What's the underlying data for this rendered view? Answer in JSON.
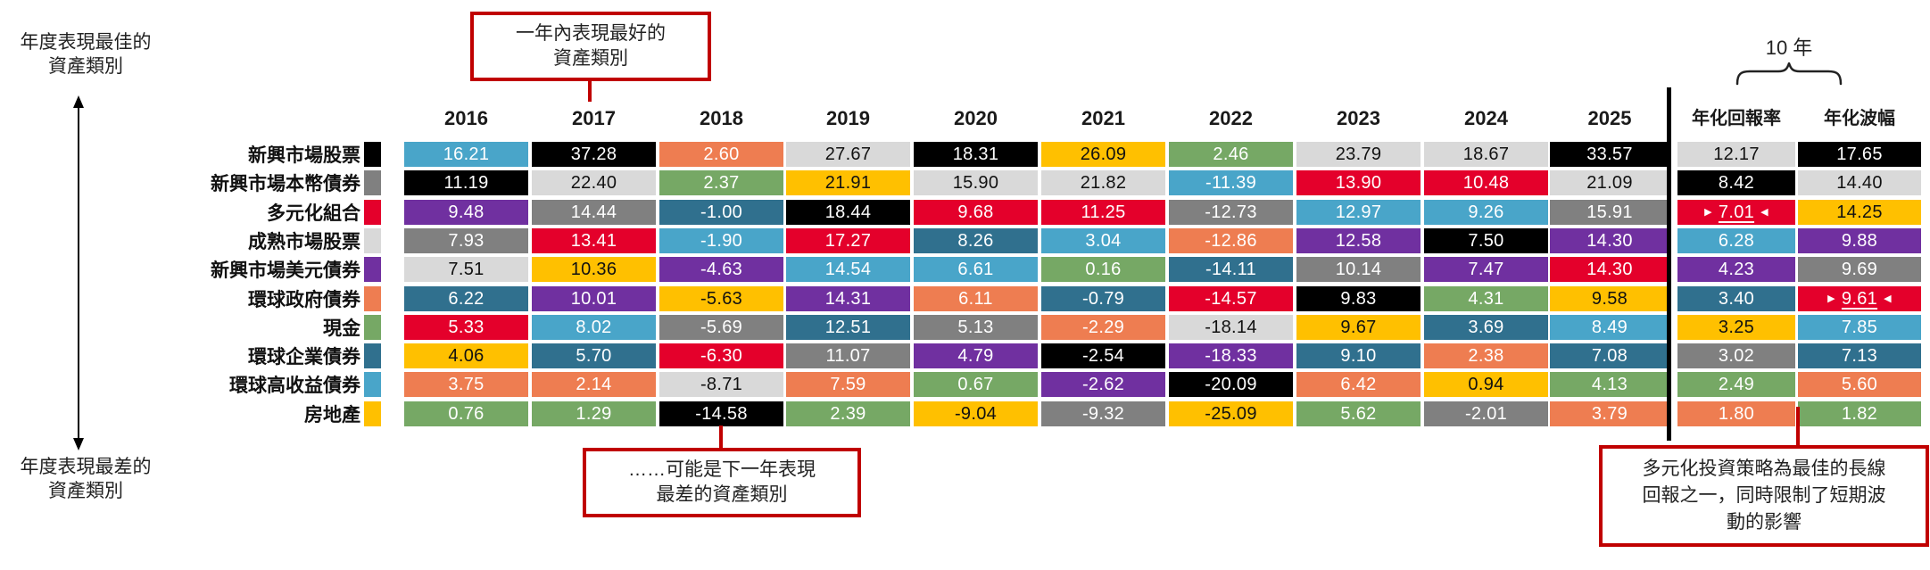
{
  "annotations": {
    "axis_best": [
      "年度表現最佳的",
      "資產類別"
    ],
    "axis_worst": [
      "年度表現最差的",
      "資產類別"
    ],
    "callout_best": [
      "一年內表現最好的",
      "資產類別"
    ],
    "callout_worst": [
      "……可能是下一年表現",
      "最差的資產類別"
    ],
    "callout_div": [
      "多元化投資策略為最佳的長線",
      "回報之一，同時限制了短期波",
      "動的影響"
    ],
    "ten_year": "10 年",
    "accent_color": "#c00000",
    "separator_color": "#000000"
  },
  "chart_data": {
    "type": "table",
    "description": "資產類別年度表現排名（每欄由最佳至最差排序），顏色代表資產類別",
    "columns": [
      "2016",
      "2017",
      "2018",
      "2019",
      "2020",
      "2021",
      "2022",
      "2023",
      "2024",
      "2025",
      "年化回報率",
      "年化波幅"
    ],
    "assets": {
      "em_equity": {
        "label": "新興市場股票",
        "color": "#000000",
        "text_color": "#ffffff"
      },
      "em_local_debt": {
        "label": "新興市場本幣債券",
        "color": "#808080",
        "text_color": "#ffffff"
      },
      "diversified": {
        "label": "多元化組合",
        "color": "#e4002b",
        "text_color": "#ffffff"
      },
      "dm_equity": {
        "label": "成熟市場股票",
        "color": "#d9d9d9",
        "text_color": "#111111"
      },
      "em_usd_debt": {
        "label": "新興市場美元債券",
        "color": "#7030a0",
        "text_color": "#ffffff"
      },
      "global_govt_bonds": {
        "label": "環球政府債券",
        "color": "#ee7d51",
        "text_color": "#ffffff"
      },
      "cash": {
        "label": "現金",
        "color": "#76a865",
        "text_color": "#ffffff"
      },
      "global_corp_bonds": {
        "label": "環球企業債券",
        "color": "#30708e",
        "text_color": "#ffffff"
      },
      "global_high_yield": {
        "label": "環球高收益債券",
        "color": "#49a5c9",
        "text_color": "#ffffff"
      },
      "real_estate": {
        "label": "房地產",
        "color": "#ffc000",
        "text_color": "#111111"
      }
    },
    "legend_order": [
      "em_equity",
      "em_local_debt",
      "diversified",
      "dm_equity",
      "em_usd_debt",
      "global_govt_bonds",
      "cash",
      "global_corp_bonds",
      "global_high_yield",
      "real_estate"
    ],
    "ranking_columns": [
      {
        "label": "2016",
        "cells": [
          {
            "a": "global_high_yield",
            "v": "16.21"
          },
          {
            "a": "em_equity",
            "v": "11.19"
          },
          {
            "a": "em_usd_debt",
            "v": "9.48"
          },
          {
            "a": "em_local_debt",
            "v": "7.93"
          },
          {
            "a": "dm_equity",
            "v": "7.51"
          },
          {
            "a": "global_corp_bonds",
            "v": "6.22"
          },
          {
            "a": "diversified",
            "v": "5.33"
          },
          {
            "a": "real_estate",
            "v": "4.06"
          },
          {
            "a": "global_govt_bonds",
            "v": "3.75"
          },
          {
            "a": "cash",
            "v": "0.76"
          }
        ]
      },
      {
        "label": "2017",
        "cells": [
          {
            "a": "em_equity",
            "v": "37.28"
          },
          {
            "a": "dm_equity",
            "v": "22.40"
          },
          {
            "a": "em_local_debt",
            "v": "14.44"
          },
          {
            "a": "diversified",
            "v": "13.41"
          },
          {
            "a": "real_estate",
            "v": "10.36"
          },
          {
            "a": "em_usd_debt",
            "v": "10.01"
          },
          {
            "a": "global_high_yield",
            "v": "8.02"
          },
          {
            "a": "global_corp_bonds",
            "v": "5.70"
          },
          {
            "a": "global_govt_bonds",
            "v": "2.14"
          },
          {
            "a": "cash",
            "v": "1.29"
          }
        ]
      },
      {
        "label": "2018",
        "cells": [
          {
            "a": "global_govt_bonds",
            "v": "2.60"
          },
          {
            "a": "cash",
            "v": "2.37"
          },
          {
            "a": "global_corp_bonds",
            "v": "-1.00"
          },
          {
            "a": "global_high_yield",
            "v": "-1.90"
          },
          {
            "a": "em_usd_debt",
            "v": "-4.63"
          },
          {
            "a": "real_estate",
            "v": "-5.63"
          },
          {
            "a": "em_local_debt",
            "v": "-5.69"
          },
          {
            "a": "diversified",
            "v": "-6.30"
          },
          {
            "a": "dm_equity",
            "v": "-8.71"
          },
          {
            "a": "em_equity",
            "v": "-14.58"
          }
        ]
      },
      {
        "label": "2019",
        "cells": [
          {
            "a": "dm_equity",
            "v": "27.67"
          },
          {
            "a": "real_estate",
            "v": "21.91"
          },
          {
            "a": "em_equity",
            "v": "18.44"
          },
          {
            "a": "diversified",
            "v": "17.27"
          },
          {
            "a": "global_high_yield",
            "v": "14.54"
          },
          {
            "a": "em_usd_debt",
            "v": "14.31"
          },
          {
            "a": "global_corp_bonds",
            "v": "12.51"
          },
          {
            "a": "em_local_debt",
            "v": "11.07"
          },
          {
            "a": "global_govt_bonds",
            "v": "7.59"
          },
          {
            "a": "cash",
            "v": "2.39"
          }
        ]
      },
      {
        "label": "2020",
        "cells": [
          {
            "a": "em_equity",
            "v": "18.31"
          },
          {
            "a": "dm_equity",
            "v": "15.90"
          },
          {
            "a": "diversified",
            "v": "9.68"
          },
          {
            "a": "global_corp_bonds",
            "v": "8.26"
          },
          {
            "a": "global_high_yield",
            "v": "6.61"
          },
          {
            "a": "global_govt_bonds",
            "v": "6.11"
          },
          {
            "a": "em_local_debt",
            "v": "5.13"
          },
          {
            "a": "em_usd_debt",
            "v": "4.79"
          },
          {
            "a": "cash",
            "v": "0.67"
          },
          {
            "a": "real_estate",
            "v": "-9.04"
          }
        ]
      },
      {
        "label": "2021",
        "cells": [
          {
            "a": "real_estate",
            "v": "26.09"
          },
          {
            "a": "dm_equity",
            "v": "21.82"
          },
          {
            "a": "diversified",
            "v": "11.25"
          },
          {
            "a": "global_high_yield",
            "v": "3.04"
          },
          {
            "a": "cash",
            "v": "0.16"
          },
          {
            "a": "global_corp_bonds",
            "v": "-0.79"
          },
          {
            "a": "global_govt_bonds",
            "v": "-2.29"
          },
          {
            "a": "em_equity",
            "v": "-2.54"
          },
          {
            "a": "em_usd_debt",
            "v": "-2.62"
          },
          {
            "a": "em_local_debt",
            "v": "-9.32"
          }
        ]
      },
      {
        "label": "2022",
        "cells": [
          {
            "a": "cash",
            "v": "2.46"
          },
          {
            "a": "global_high_yield",
            "v": "-11.39"
          },
          {
            "a": "em_local_debt",
            "v": "-12.73"
          },
          {
            "a": "global_govt_bonds",
            "v": "-12.86"
          },
          {
            "a": "global_corp_bonds",
            "v": "-14.11"
          },
          {
            "a": "diversified",
            "v": "-14.57"
          },
          {
            "a": "dm_equity",
            "v": "-18.14"
          },
          {
            "a": "em_usd_debt",
            "v": "-18.33"
          },
          {
            "a": "em_equity",
            "v": "-20.09"
          },
          {
            "a": "real_estate",
            "v": "-25.09"
          }
        ]
      },
      {
        "label": "2023",
        "cells": [
          {
            "a": "dm_equity",
            "v": "23.79"
          },
          {
            "a": "diversified",
            "v": "13.90"
          },
          {
            "a": "global_high_yield",
            "v": "12.97"
          },
          {
            "a": "em_usd_debt",
            "v": "12.58"
          },
          {
            "a": "em_local_debt",
            "v": "10.14"
          },
          {
            "a": "em_equity",
            "v": "9.83"
          },
          {
            "a": "real_estate",
            "v": "9.67"
          },
          {
            "a": "global_corp_bonds",
            "v": "9.10"
          },
          {
            "a": "global_govt_bonds",
            "v": "6.42"
          },
          {
            "a": "cash",
            "v": "5.62"
          }
        ]
      },
      {
        "label": "2024",
        "cells": [
          {
            "a": "dm_equity",
            "v": "18.67"
          },
          {
            "a": "diversified",
            "v": "10.48"
          },
          {
            "a": "global_high_yield",
            "v": "9.26"
          },
          {
            "a": "em_equity",
            "v": "7.50"
          },
          {
            "a": "em_usd_debt",
            "v": "7.47"
          },
          {
            "a": "cash",
            "v": "4.31"
          },
          {
            "a": "global_corp_bonds",
            "v": "3.69"
          },
          {
            "a": "global_govt_bonds",
            "v": "2.38"
          },
          {
            "a": "real_estate",
            "v": "0.94"
          },
          {
            "a": "em_local_debt",
            "v": "-2.01"
          }
        ]
      },
      {
        "label": "2025",
        "cells": [
          {
            "a": "em_equity",
            "v": "33.57"
          },
          {
            "a": "dm_equity",
            "v": "21.09"
          },
          {
            "a": "em_local_debt",
            "v": "15.91"
          },
          {
            "a": "em_usd_debt",
            "v": "14.30"
          },
          {
            "a": "diversified",
            "v": "14.30"
          },
          {
            "a": "real_estate",
            "v": "9.58"
          },
          {
            "a": "global_high_yield",
            "v": "8.49"
          },
          {
            "a": "global_corp_bonds",
            "v": "7.08"
          },
          {
            "a": "cash",
            "v": "4.13"
          },
          {
            "a": "global_govt_bonds",
            "v": "3.79"
          }
        ]
      },
      {
        "label": "年化回報率",
        "cells": [
          {
            "a": "dm_equity",
            "v": "12.17"
          },
          {
            "a": "em_equity",
            "v": "8.42"
          },
          {
            "a": "diversified",
            "v": "7.01",
            "hl": true
          },
          {
            "a": "global_high_yield",
            "v": "6.28"
          },
          {
            "a": "em_usd_debt",
            "v": "4.23"
          },
          {
            "a": "global_corp_bonds",
            "v": "3.40"
          },
          {
            "a": "real_estate",
            "v": "3.25"
          },
          {
            "a": "em_local_debt",
            "v": "3.02"
          },
          {
            "a": "cash",
            "v": "2.49"
          },
          {
            "a": "global_govt_bonds",
            "v": "1.80"
          }
        ]
      },
      {
        "label": "年化波幅",
        "cells": [
          {
            "a": "em_equity",
            "v": "17.65"
          },
          {
            "a": "dm_equity",
            "v": "14.40"
          },
          {
            "a": "real_estate",
            "v": "14.25"
          },
          {
            "a": "em_usd_debt",
            "v": "9.88"
          },
          {
            "a": "em_local_debt",
            "v": "9.69"
          },
          {
            "a": "diversified",
            "v": "9.61",
            "hl": true
          },
          {
            "a": "global_high_yield",
            "v": "7.85"
          },
          {
            "a": "global_corp_bonds",
            "v": "7.13"
          },
          {
            "a": "global_govt_bonds",
            "v": "5.60"
          },
          {
            "a": "cash",
            "v": "1.82"
          }
        ]
      }
    ]
  }
}
